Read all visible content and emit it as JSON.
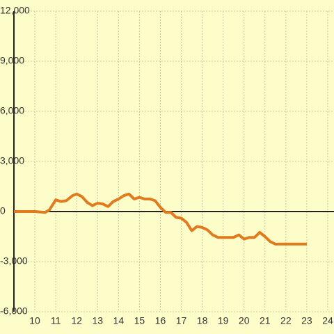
{
  "chart_data": {
    "type": "line",
    "x": [
      9,
      10,
      10.5,
      10.7,
      11,
      11.25,
      11.5,
      11.8,
      12,
      12.25,
      12.5,
      12.75,
      13,
      13.25,
      13.5,
      13.75,
      14,
      14.25,
      14.5,
      14.75,
      15,
      15.25,
      15.5,
      15.75,
      16,
      16.25,
      16.5,
      16.75,
      17,
      17.25,
      17.5,
      17.75,
      18,
      18.25,
      18.5,
      18.75,
      19,
      19.5,
      19.75,
      20,
      20.25,
      20.5,
      20.75,
      21,
      21.25,
      21.5,
      22,
      23
    ],
    "series": [
      {
        "color": "#e07b20",
        "values": [
          0,
          0,
          -50,
          100,
          700,
          600,
          650,
          950,
          1050,
          900,
          550,
          350,
          500,
          450,
          300,
          600,
          750,
          950,
          1050,
          750,
          850,
          750,
          750,
          650,
          250,
          -50,
          -50,
          -350,
          -400,
          -650,
          -1150,
          -900,
          -950,
          -1100,
          -1400,
          -1550,
          -1550,
          -1550,
          -1400,
          -1650,
          -1550,
          -1550,
          -1250,
          -1500,
          -1800,
          -1950,
          -1950,
          -1950
        ]
      }
    ],
    "xlim": [
      9,
      24.3
    ],
    "xticks": [
      10,
      11,
      12,
      13,
      14,
      15,
      16,
      17,
      18,
      19,
      20,
      21,
      22,
      23,
      24
    ],
    "ylim": [
      -6000,
      12000
    ],
    "yticks": [
      {
        "value": -6000,
        "label": "-6,000"
      },
      {
        "value": -3000,
        "label": "-3,000"
      },
      0,
      {
        "value": 3000,
        "label": "3,000"
      },
      {
        "value": 6000,
        "label": "6,000"
      },
      {
        "value": 9000,
        "label": "9,000"
      },
      {
        "value": 12000,
        "label": "12,000"
      }
    ],
    "grid": true
  }
}
